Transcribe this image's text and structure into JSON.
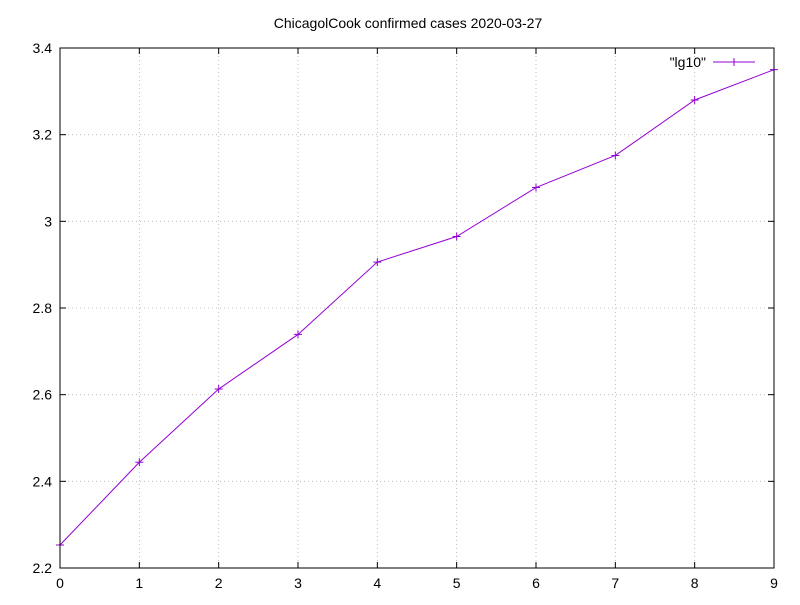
{
  "chart_data": {
    "type": "line",
    "title": "ChicagolCook confirmed cases 2020-03-27",
    "xlabel": "",
    "ylabel": "",
    "xlim": [
      0,
      9
    ],
    "ylim": [
      2.2,
      3.4
    ],
    "xticks": [
      "0",
      "1",
      "2",
      "3",
      "4",
      "5",
      "6",
      "7",
      "8",
      "9"
    ],
    "yticks": [
      "2.2",
      "2.4",
      "2.6",
      "2.8",
      "3",
      "3.2",
      "3.4"
    ],
    "grid": true,
    "legend_position": "top-right",
    "series": [
      {
        "name": "\"lg10\"",
        "color": "#9400d3",
        "x": [
          0,
          1,
          2,
          3,
          4,
          5,
          6,
          7,
          8,
          9
        ],
        "values": [
          2.253,
          2.444,
          2.613,
          2.739,
          2.906,
          2.965,
          3.078,
          3.152,
          3.28,
          3.35
        ]
      }
    ]
  }
}
